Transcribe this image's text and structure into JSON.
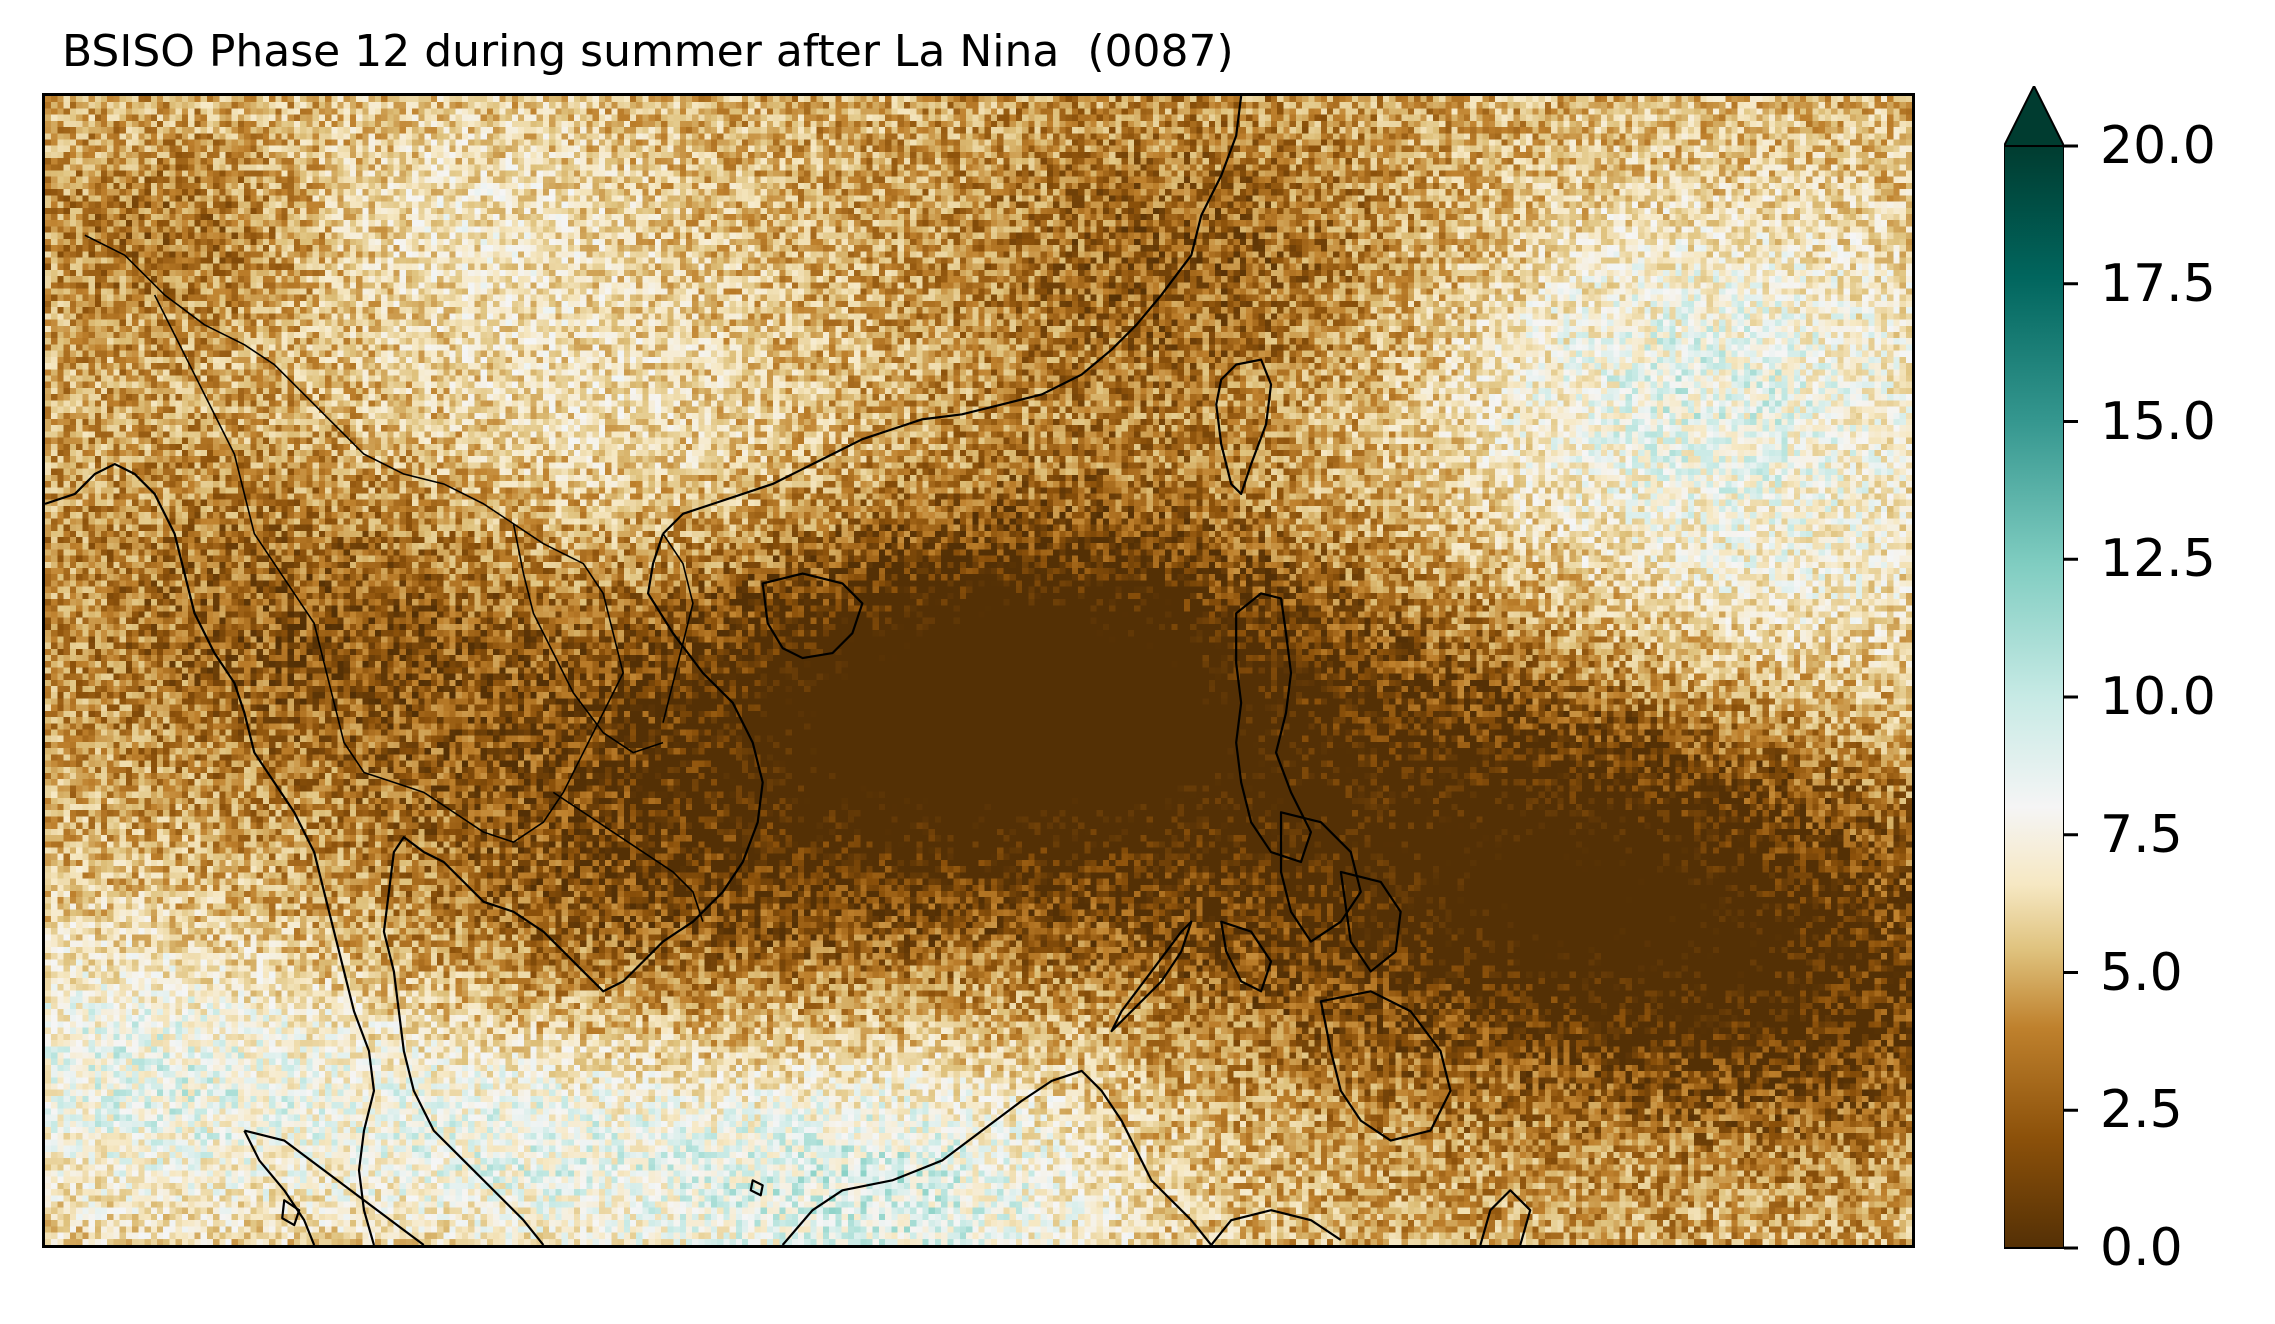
{
  "title": "BSISO Phase 12 during summer after La Nina  (0087)",
  "colorbar": {
    "min": 0.0,
    "max": 20.0,
    "extend": "max",
    "ticks": [
      "0.0",
      "2.5",
      "5.0",
      "7.5",
      "10.0",
      "12.5",
      "15.0",
      "17.5",
      "20.0"
    ],
    "colormap": "BrBG",
    "colors": [
      "#543005",
      "#8c510a",
      "#bf812d",
      "#dfc27d",
      "#f6e8c3",
      "#f5f5f5",
      "#c7eae5",
      "#80cdc1",
      "#35978f",
      "#01665e",
      "#003c30"
    ]
  },
  "map": {
    "coastline_color": "#000000",
    "features": [
      "coastlines",
      "country-borders"
    ]
  }
}
